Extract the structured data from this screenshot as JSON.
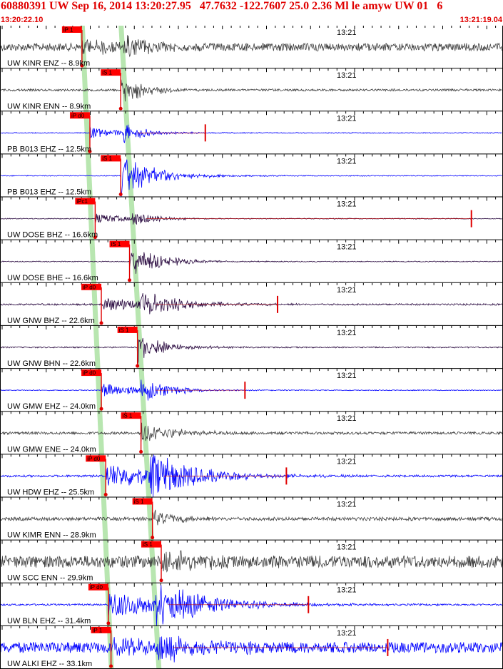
{
  "header": {
    "title": "60880391 UW Sep 16, 2014 13:20:27.95   47.7632 -122.7607 25.0 2.36 Ml le amyw UW 01   6",
    "start_time": "13:20:22.10",
    "end_time": "13:21:19.04"
  },
  "minute_label": "13:21",
  "colors": {
    "pick_box": "#ff0000",
    "pick_band": "#b8e6b0",
    "trace_gray": "#404040",
    "trace_blue": "#0000ff",
    "trace_dark": "#2a0a40",
    "header_text": "#e00000"
  },
  "traces": [
    {
      "label": "UW KINR ENZ -- 8.9km",
      "color": "gray",
      "pick": "iP 1",
      "pick_time": 9.3,
      "amp": 0.55,
      "noise": 0.18,
      "s_time": 14.0,
      "decay": 5.0,
      "end": 57,
      "red_mark": null
    },
    {
      "label": "UW KINR ENN -- 8.9km",
      "color": "gray",
      "pick": "iS 1",
      "pick_time": 13.7,
      "amp": 0.5,
      "noise": 0.05,
      "s_time": 13.7,
      "decay": 4.0,
      "end": 57,
      "red_mark": null
    },
    {
      "label": "PB B013 EHZ -- 12.5km",
      "color": "blue",
      "pick": "iP d0",
      "pick_time": 10.2,
      "amp": 0.45,
      "noise": 0.02,
      "s_time": 14.0,
      "decay": 4.0,
      "end": 57,
      "red_mark": 23.3
    },
    {
      "label": "PB B013 EHZ -- 12.5km",
      "color": "blue",
      "pick": "iS 1",
      "pick_time": 13.7,
      "amp": 0.75,
      "noise": 0.02,
      "s_time": 13.7,
      "decay": 5.0,
      "end": 57,
      "red_mark": null
    },
    {
      "label": "UW DOSE BHZ -- 16.6km",
      "color": "dark",
      "pick": "iPc1",
      "pick_time": 10.8,
      "amp": 0.4,
      "noise": 0.02,
      "s_time": 15.0,
      "decay": 4.0,
      "end": 57,
      "red_mark": 53.5
    },
    {
      "label": "UW DOSE BHE -- 16.6km",
      "color": "dark",
      "pick": "iS 1",
      "pick_time": 14.7,
      "amp": 0.75,
      "noise": 0.02,
      "s_time": 14.7,
      "decay": 4.0,
      "end": 57,
      "red_mark": null
    },
    {
      "label": "UW GNW BHZ -- 22.6km",
      "color": "dark",
      "pick": "iP d0",
      "pick_time": 11.5,
      "amp": 0.55,
      "noise": 0.04,
      "s_time": 16.0,
      "decay": 7.0,
      "end": 57.5,
      "red_mark": 31.5
    },
    {
      "label": "UW GNW BHN -- 22.6km",
      "color": "dark",
      "pick": "iS 1",
      "pick_time": 15.6,
      "amp": 0.55,
      "noise": 0.03,
      "s_time": 15.6,
      "decay": 4.0,
      "end": 57.5,
      "red_mark": null
    },
    {
      "label": "UW GMW EHZ -- 24.0km",
      "color": "blue",
      "pick": "iP d0",
      "pick_time": 11.5,
      "amp": 0.55,
      "noise": 0.02,
      "s_time": 16.0,
      "decay": 5.0,
      "end": 57,
      "red_mark": 27.8
    },
    {
      "label": "UW GMW ENE -- 24.0km",
      "color": "gray",
      "pick": "iS 1",
      "pick_time": 16.0,
      "amp": 0.55,
      "noise": 0.06,
      "s_time": 16.0,
      "decay": 4.0,
      "end": 57.5,
      "red_mark": null
    },
    {
      "label": "UW HDW EHZ -- 25.5km",
      "color": "blue",
      "pick": "iP d0",
      "pick_time": 12.0,
      "amp": 1.0,
      "noise": 0.05,
      "s_time": 17.0,
      "decay": 8.0,
      "end": 57.5,
      "red_mark": 32.5
    },
    {
      "label": "UW KIMR ENN -- 28.9km",
      "color": "gray",
      "pick": "iS 1",
      "pick_time": 17.3,
      "amp": 0.35,
      "noise": 0.08,
      "s_time": 17.3,
      "decay": 4.0,
      "end": 57,
      "red_mark": null
    },
    {
      "label": "UW SCC ENN -- 29.9km",
      "color": "gray",
      "pick": "iS 1",
      "pick_time": 18.3,
      "amp": 0.5,
      "noise": 0.28,
      "s_time": 18.3,
      "decay": 5.0,
      "end": 58,
      "red_mark": null
    },
    {
      "label": "UW BLN EHZ -- 31.4km",
      "color": "blue",
      "pick": "iP d0",
      "pick_time": 12.3,
      "amp": 1.0,
      "noise": 0.04,
      "s_time": 17.5,
      "decay": 9.0,
      "end": 58,
      "red_mark": 35.0
    },
    {
      "label": "UW ALKI EHZ -- 33.1km",
      "color": "blue",
      "pick": "iP 1",
      "pick_time": 12.6,
      "amp": 0.55,
      "noise": 0.25,
      "s_time": 18.0,
      "decay": 8.0,
      "end": 58,
      "red_mark": 44.0
    }
  ]
}
